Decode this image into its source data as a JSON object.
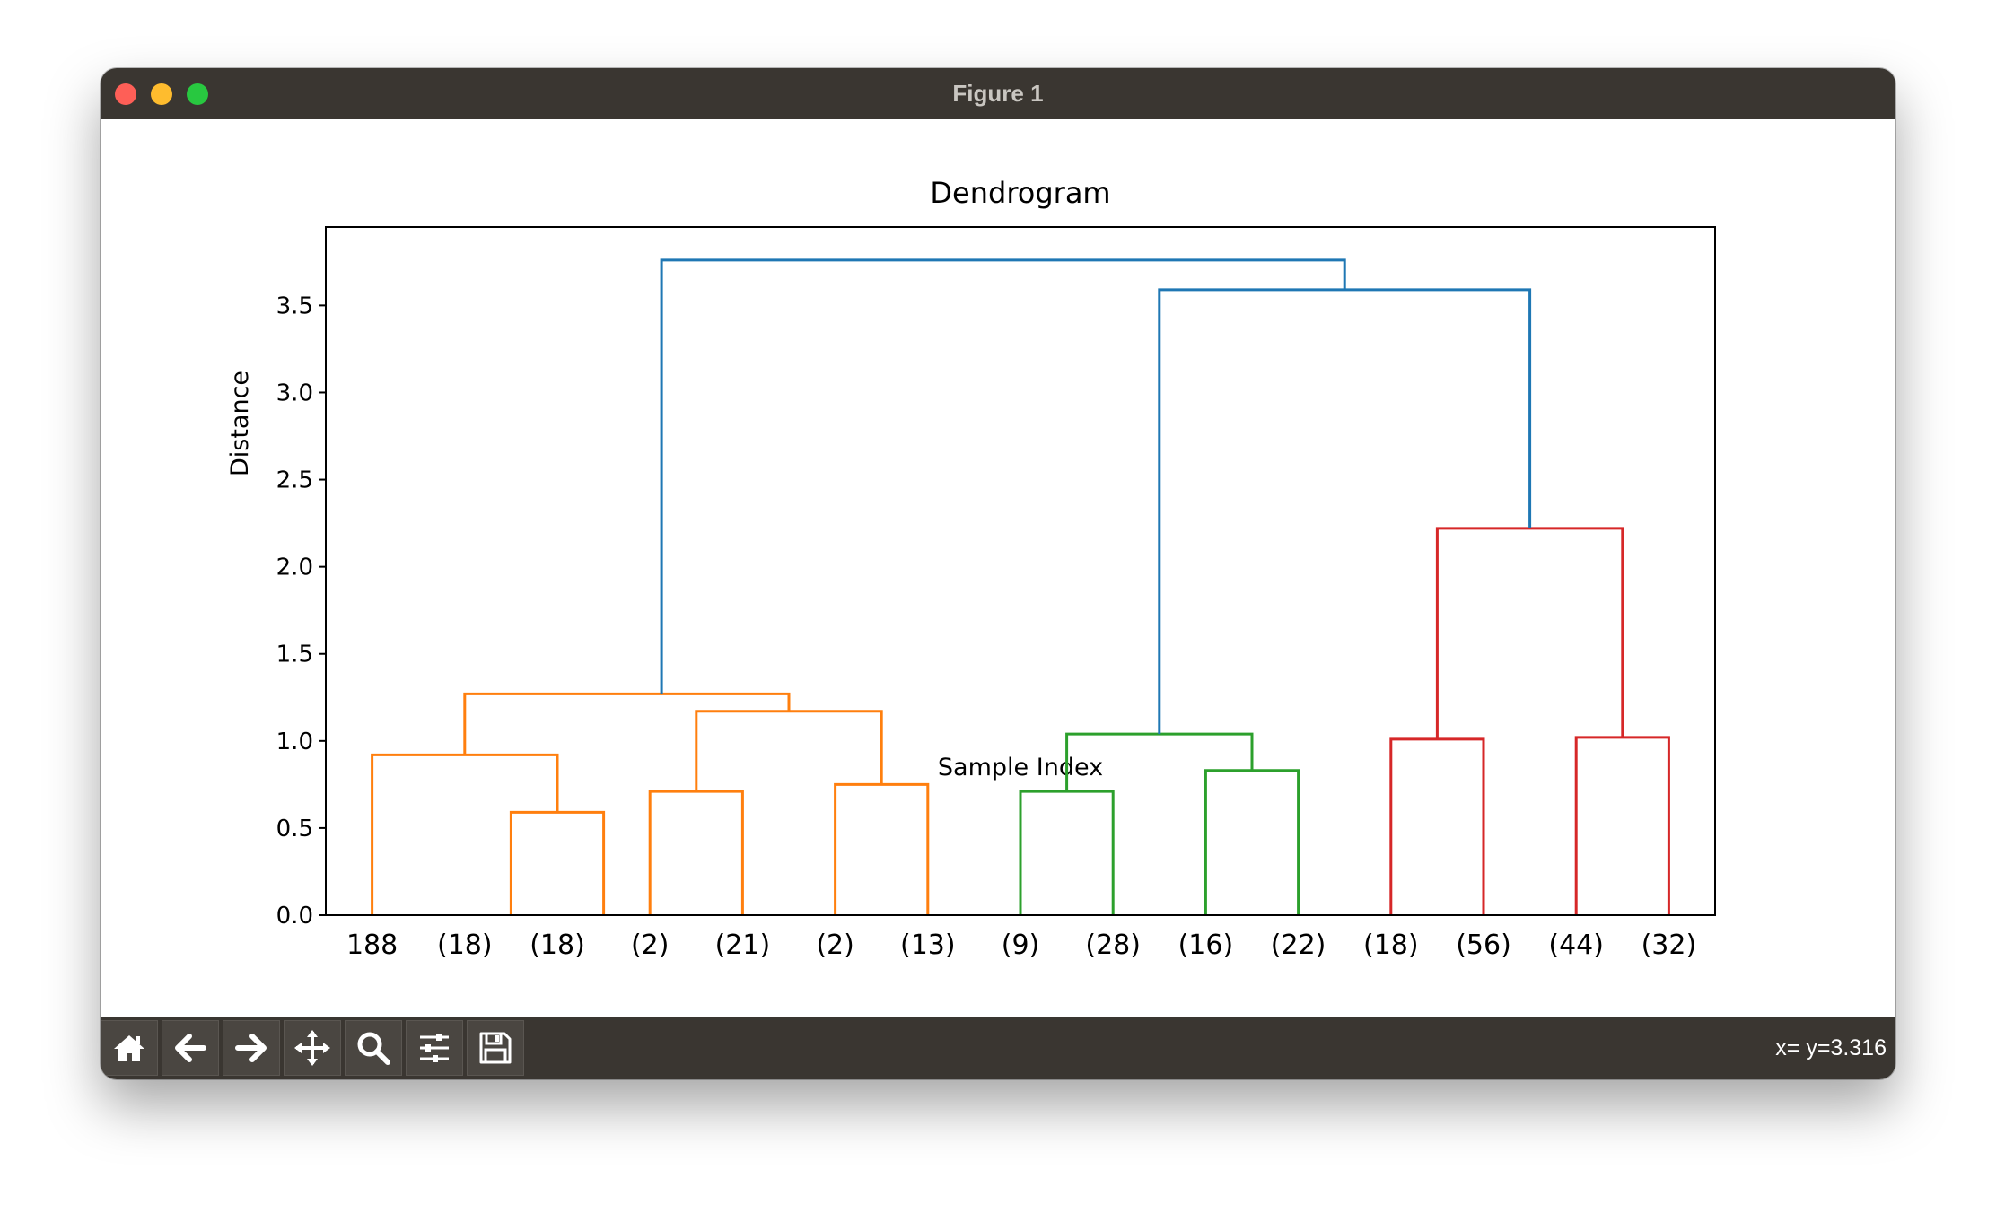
{
  "window": {
    "title": "Figure 1"
  },
  "toolbar": {
    "buttons": [
      {
        "name": "home-icon"
      },
      {
        "name": "back-icon"
      },
      {
        "name": "forward-icon"
      },
      {
        "name": "pan-icon"
      },
      {
        "name": "zoom-icon"
      },
      {
        "name": "configure-subplots-icon"
      },
      {
        "name": "save-icon"
      }
    ],
    "coords": "x= y=3.316"
  },
  "colors": {
    "orange": "#ff7f0e",
    "green": "#2ca02c",
    "red": "#d62728",
    "blue": "#1f77b4"
  },
  "chart_data": {
    "type": "dendrogram",
    "title": "Dendrogram",
    "xlabel": "Sample Index",
    "ylabel": "Distance",
    "ylim": [
      0,
      3.95
    ],
    "yticks": [
      "0.0",
      "0.5",
      "1.0",
      "1.5",
      "2.0",
      "2.5",
      "3.0",
      "3.5"
    ],
    "leaves": [
      "188",
      "(18)",
      "(18)",
      "(2)",
      "(21)",
      "(2)",
      "(13)",
      "(9)",
      "(28)",
      "(16)",
      "(22)",
      "(18)",
      "(56)",
      "(44)",
      "(32)"
    ],
    "links": [
      {
        "x": [
          1.5,
          1.5,
          2.5,
          2.5
        ],
        "y": [
          0,
          0.59,
          0.59,
          0
        ],
        "color": "orange"
      },
      {
        "x": [
          0,
          0,
          2,
          2
        ],
        "y": [
          0,
          0.92,
          0.92,
          0.59
        ],
        "color": "orange"
      },
      {
        "x": [
          3,
          3,
          4,
          4
        ],
        "y": [
          0,
          0.71,
          0.71,
          0
        ],
        "color": "orange"
      },
      {
        "x": [
          5,
          5,
          6,
          6
        ],
        "y": [
          0,
          0.75,
          0.75,
          0
        ],
        "color": "orange"
      },
      {
        "x": [
          3.5,
          3.5,
          5.5,
          5.5
        ],
        "y": [
          0.71,
          1.17,
          1.17,
          0.75
        ],
        "color": "orange"
      },
      {
        "x": [
          1,
          1,
          4.5,
          4.5
        ],
        "y": [
          0.92,
          1.27,
          1.27,
          1.17
        ],
        "color": "orange"
      },
      {
        "x": [
          7,
          7,
          8,
          8
        ],
        "y": [
          0,
          0.71,
          0.71,
          0
        ],
        "color": "green"
      },
      {
        "x": [
          9,
          9,
          10,
          10
        ],
        "y": [
          0,
          0.83,
          0.83,
          0
        ],
        "color": "green"
      },
      {
        "x": [
          7.5,
          7.5,
          9.5,
          9.5
        ],
        "y": [
          0.71,
          1.04,
          1.04,
          0.83
        ],
        "color": "green"
      },
      {
        "x": [
          11,
          11,
          12,
          12
        ],
        "y": [
          0,
          1.01,
          1.01,
          0
        ],
        "color": "red"
      },
      {
        "x": [
          13,
          13,
          14,
          14
        ],
        "y": [
          0,
          1.02,
          1.02,
          0
        ],
        "color": "red"
      },
      {
        "x": [
          11.5,
          11.5,
          13.5,
          13.5
        ],
        "y": [
          1.01,
          2.22,
          2.22,
          1.02
        ],
        "color": "red"
      },
      {
        "x": [
          8.5,
          8.5,
          12.5,
          12.5
        ],
        "y": [
          1.04,
          3.59,
          3.59,
          2.22
        ],
        "color": "blue"
      },
      {
        "x": [
          3.125,
          3.125,
          10.5,
          10.5
        ],
        "y": [
          1.27,
          3.76,
          3.76,
          3.59
        ],
        "color": "blue"
      }
    ]
  }
}
